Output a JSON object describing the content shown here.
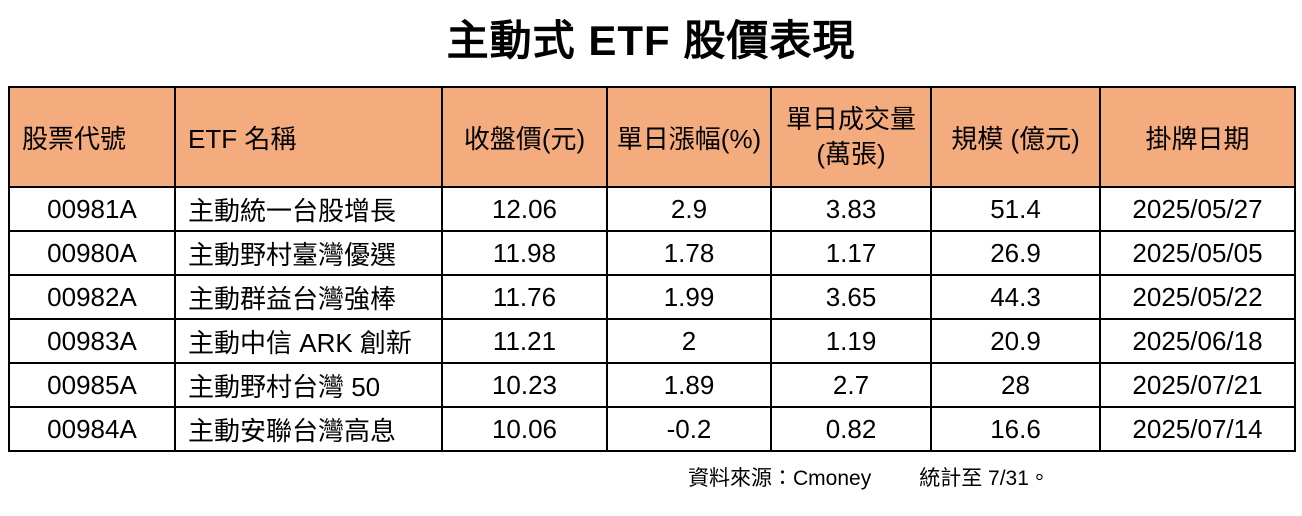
{
  "title": "主動式 ETF 股價表現",
  "colors": {
    "header_bg": "#F4AB7E",
    "border": "#000000",
    "text": "#000000",
    "row_bg": "#FFFFFF"
  },
  "table": {
    "headers": {
      "code": "股票代號",
      "name": "ETF 名稱",
      "close": "收盤價(元)",
      "change": "單日漲幅(%)",
      "volume_line1": "單日成交量",
      "volume_line2": "(萬張)",
      "scale": "規模 (億元)",
      "listed": "掛牌日期"
    },
    "rows": [
      {
        "code": "00981A",
        "name": "主動統一台股增長",
        "close": "12.06",
        "change": "2.9",
        "volume": "3.83",
        "scale": "51.4",
        "listed": "2025/05/27"
      },
      {
        "code": "00980A",
        "name": "主動野村臺灣優選",
        "close": "11.98",
        "change": "1.78",
        "volume": "1.17",
        "scale": "26.9",
        "listed": "2025/05/05"
      },
      {
        "code": "00982A",
        "name": "主動群益台灣強棒",
        "close": "11.76",
        "change": "1.99",
        "volume": "3.65",
        "scale": "44.3",
        "listed": "2025/05/22"
      },
      {
        "code": "00983A",
        "name": "主動中信 ARK 創新",
        "close": "11.21",
        "change": "2",
        "volume": "1.19",
        "scale": "20.9",
        "listed": "2025/06/18"
      },
      {
        "code": "00985A",
        "name": "主動野村台灣 50",
        "close": "10.23",
        "change": "1.89",
        "volume": "2.7",
        "scale": "28",
        "listed": "2025/07/21"
      },
      {
        "code": "00984A",
        "name": "主動安聯台灣高息",
        "close": "10.06",
        "change": "-0.2",
        "volume": "0.82",
        "scale": "16.6",
        "listed": "2025/07/14"
      }
    ]
  },
  "footer": {
    "source": "資料來源：Cmoney",
    "asof": "統計至 7/31。"
  },
  "chart_data": {
    "type": "table",
    "title": "主動式 ETF 股價表現",
    "columns": [
      "股票代號",
      "ETF 名稱",
      "收盤價(元)",
      "單日漲幅(%)",
      "單日成交量(萬張)",
      "規模 (億元)",
      "掛牌日期"
    ],
    "rows": [
      [
        "00981A",
        "主動統一台股增長",
        12.06,
        2.9,
        3.83,
        51.4,
        "2025/05/27"
      ],
      [
        "00980A",
        "主動野村臺灣優選",
        11.98,
        1.78,
        1.17,
        26.9,
        "2025/05/05"
      ],
      [
        "00982A",
        "主動群益台灣強棒",
        11.76,
        1.99,
        3.65,
        44.3,
        "2025/05/22"
      ],
      [
        "00983A",
        "主動中信 ARK 創新",
        11.21,
        2,
        1.19,
        20.9,
        "2025/06/18"
      ],
      [
        "00985A",
        "主動野村台灣 50",
        10.23,
        1.89,
        2.7,
        28,
        "2025/07/21"
      ],
      [
        "00984A",
        "主動安聯台灣高息",
        10.06,
        -0.2,
        0.82,
        16.6,
        "2025/07/14"
      ]
    ],
    "source_note": "資料來源：Cmoney",
    "as_of_note": "統計至 7/31。"
  }
}
